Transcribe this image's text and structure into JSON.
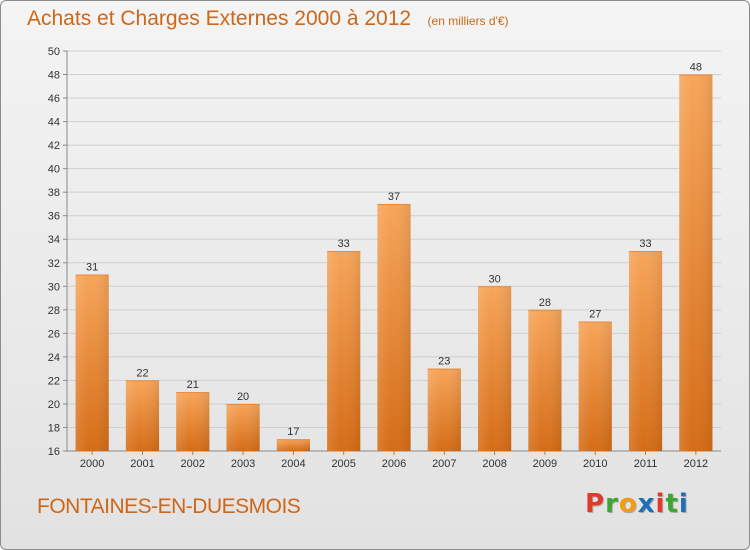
{
  "header": {
    "title": "Achats et Charges Externes 2000 à 2012",
    "unit": "(en milliers d'€)"
  },
  "footer": {
    "commune": "FONTAINES-EN-DUESMOIS",
    "logo_text": "Proxiti",
    "logo_colors": [
      "#e23a2a",
      "#3fa535",
      "#f39c12",
      "#1d6fb8",
      "#e23a2a",
      "#3fa535",
      "#1d6fb8"
    ]
  },
  "colors": {
    "title": "#ce6719",
    "bar_top": "#f7a55a",
    "bar_bottom": "#d56c16",
    "grid": "#cfcfcf",
    "axis": "#8a8a8a",
    "text": "#333333"
  },
  "chart_data": {
    "type": "bar",
    "title": "Achats et Charges Externes 2000 à 2012",
    "subtitle": "(en milliers d'€)",
    "categories": [
      "2000",
      "2001",
      "2002",
      "2003",
      "2004",
      "2005",
      "2006",
      "2007",
      "2008",
      "2009",
      "2010",
      "2011",
      "2012"
    ],
    "values": [
      31,
      22,
      21,
      20,
      17,
      33,
      37,
      23,
      30,
      28,
      27,
      33,
      48
    ],
    "ylim": [
      16,
      50
    ],
    "yticks": [
      16,
      18,
      20,
      22,
      24,
      26,
      28,
      30,
      32,
      34,
      36,
      38,
      40,
      42,
      44,
      46,
      48,
      50
    ],
    "grid": true,
    "data_labels": true,
    "xlabel": "",
    "ylabel": ""
  }
}
